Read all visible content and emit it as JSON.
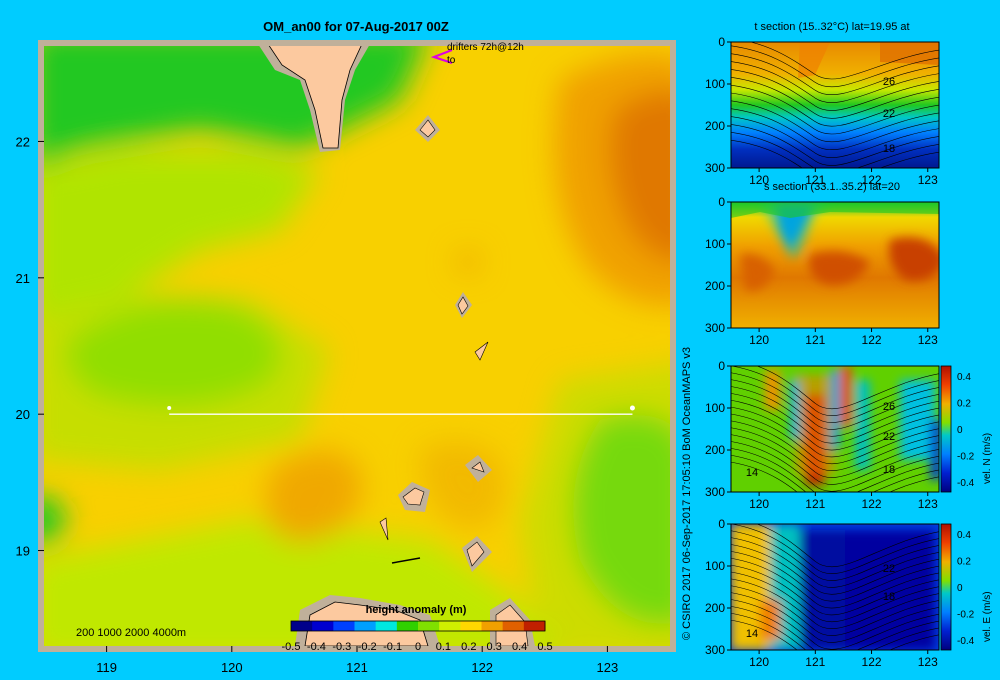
{
  "page": {
    "background": "#00ccff",
    "title": "OM_an00 for 07-Aug-2017 00Z",
    "credit": "© CSIRO 2017   06-Sep-2017 17:05:10 BoM OceanMAPS v3"
  },
  "map": {
    "drifters_label": "drifters 72h@12h",
    "drifters_sub": "to",
    "depth_legend": "200  1000  2000  4000m",
    "land_color": "#fcc99f",
    "shelf_color": "#c0b09a",
    "section_line": {
      "lat": 20,
      "lon_start": 119.5,
      "lon_end": 123.2
    }
  },
  "colorbar": {
    "label": "height anomaly  (m)",
    "ticks": [
      "-0.5",
      "-0.4",
      "-0.3",
      "-0.2",
      "-0.1",
      "0",
      "0.1",
      "0.2",
      "0.3",
      "0.4",
      "0.5"
    ],
    "colors": [
      "#00008b",
      "#0000d0",
      "#0040ff",
      "#00a0ff",
      "#00e8e0",
      "#30d000",
      "#80e000",
      "#d0f000",
      "#ffd800",
      "#f0a000",
      "#e06000",
      "#c02000"
    ]
  },
  "panels": [
    {
      "title": "t section (15..32°C) lat=19.95 at",
      "contour_labels": [
        "26",
        "22",
        "18"
      ],
      "colorbar": null
    },
    {
      "title": "s section (33.1..35.2) lat=20",
      "contour_labels": [],
      "colorbar": null
    },
    {
      "title": "",
      "contour_labels": [
        "26",
        "22",
        "18",
        "14"
      ],
      "colorbar": {
        "label": "vel. N (m/s)",
        "ticks": [
          "0.4",
          "0.2",
          "0",
          "-0.2",
          "-0.4"
        ]
      }
    },
    {
      "title": "",
      "contour_labels": [
        "22",
        "18",
        "14"
      ],
      "colorbar": {
        "label": "vel. E (m/s)",
        "ticks": [
          "0.4",
          "0.2",
          "0",
          "-0.2",
          "-0.4"
        ]
      }
    }
  ],
  "chart_data": [
    {
      "type": "heatmap",
      "title": "OM_an00 for 07-Aug-2017 00Z",
      "variable": "height anomaly (m)",
      "xlim": [
        118.5,
        123.5
      ],
      "ylim": [
        18.3,
        22.7
      ],
      "x_ticks": [
        "119",
        "120",
        "121",
        "122",
        "123"
      ],
      "y_ticks": [
        "19",
        "20",
        "21",
        "22"
      ],
      "value_range": [
        -0.5,
        0.5
      ],
      "features": [
        {
          "lon": 123.3,
          "lat": 21.7,
          "value": 0.4
        },
        {
          "lon": 123.2,
          "lat": 22.5,
          "value": 0.3
        },
        {
          "lon": 122.0,
          "lat": 22.0,
          "value": 0.2
        },
        {
          "lon": 121.5,
          "lat": 20.8,
          "value": 0.2
        },
        {
          "lon": 120.4,
          "lat": 19.3,
          "value": 0.3
        },
        {
          "lon": 119.4,
          "lat": 20.5,
          "value": 0.05
        },
        {
          "lon": 119.1,
          "lat": 22.4,
          "value": 0.05
        },
        {
          "lon": 123.3,
          "lat": 19.1,
          "value": 0.0
        },
        {
          "lon": 118.8,
          "lat": 21.3,
          "value": 0.15
        }
      ]
    },
    {
      "type": "heatmap",
      "title": "t section (15..32°C) lat=19.95 at",
      "x_ticks": [
        "120",
        "121",
        "122",
        "123"
      ],
      "y_ticks": [
        "0",
        "100",
        "200",
        "300"
      ],
      "xlim": [
        119.5,
        123.2
      ],
      "ylim": [
        300,
        0
      ],
      "contour_labels": [
        "26",
        "22",
        "18"
      ]
    },
    {
      "type": "heatmap",
      "title": "s section (33.1..35.2) lat=20",
      "x_ticks": [
        "120",
        "121",
        "122",
        "123"
      ],
      "y_ticks": [
        "0",
        "100",
        "200",
        "300"
      ],
      "xlim": [
        119.5,
        123.2
      ],
      "ylim": [
        300,
        0
      ]
    },
    {
      "type": "heatmap",
      "title": "",
      "variable": "vel. N (m/s)",
      "x_ticks": [
        "120",
        "121",
        "122",
        "123"
      ],
      "y_ticks": [
        "0",
        "100",
        "200",
        "300"
      ],
      "xlim": [
        119.5,
        123.2
      ],
      "ylim": [
        300,
        0
      ],
      "value_range": [
        -0.4,
        0.4
      ],
      "contour_labels": [
        "26",
        "22",
        "18",
        "14"
      ]
    },
    {
      "type": "heatmap",
      "title": "",
      "variable": "vel. E (m/s)",
      "x_ticks": [
        "120",
        "121",
        "122",
        "123"
      ],
      "y_ticks": [
        "0",
        "100",
        "200",
        "300"
      ],
      "xlim": [
        119.5,
        123.2
      ],
      "ylim": [
        300,
        0
      ],
      "value_range": [
        -0.4,
        0.4
      ],
      "contour_labels": [
        "22",
        "18",
        "14"
      ]
    }
  ]
}
